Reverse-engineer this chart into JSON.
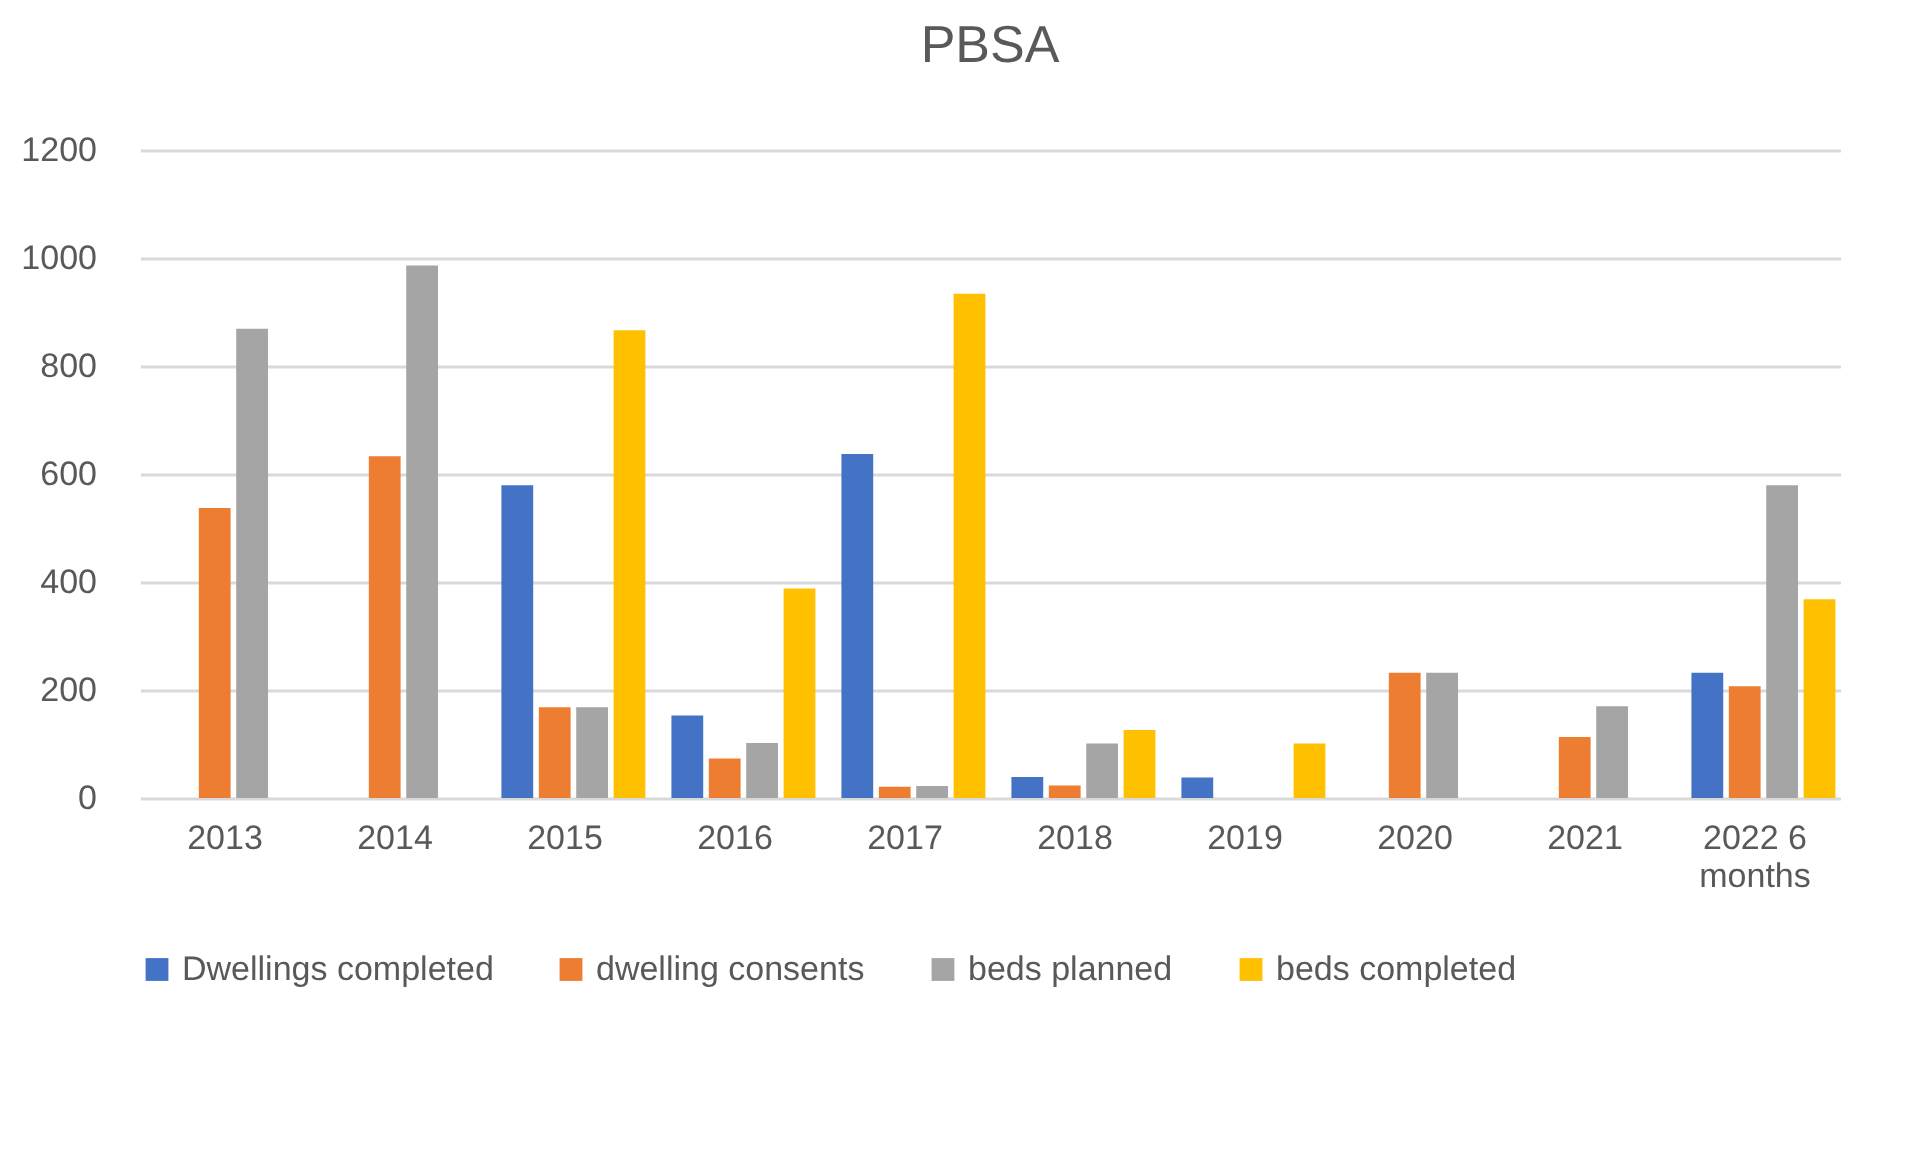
{
  "chart_data": {
    "type": "bar",
    "title": "PBSA",
    "categories": [
      "2013",
      "2014",
      "2015",
      "2016",
      "2017",
      "2018",
      "2019",
      "2020",
      "2021",
      "2022 6 months"
    ],
    "series": [
      {
        "name": "Dwellings completed",
        "color": "#4472c4",
        "values": [
          null,
          null,
          579,
          153,
          637,
          39,
          38,
          null,
          null,
          232
        ]
      },
      {
        "name": "dwelling consents",
        "color": "#ed7d31",
        "values": [
          537,
          633,
          168,
          73,
          21,
          23,
          null,
          232,
          113,
          207
        ]
      },
      {
        "name": "beds planned",
        "color": "#a5a5a5",
        "values": [
          869,
          986,
          168,
          102,
          22,
          101,
          null,
          232,
          170,
          579
        ]
      },
      {
        "name": "beds completed",
        "color": "#ffc000",
        "values": [
          null,
          null,
          866,
          388,
          934,
          126,
          101,
          null,
          null,
          368
        ]
      }
    ],
    "ylim": [
      0,
      1200
    ],
    "yticks": [
      0,
      200,
      400,
      600,
      800,
      1000,
      1200
    ],
    "grid": "y",
    "legend": "bottom"
  }
}
